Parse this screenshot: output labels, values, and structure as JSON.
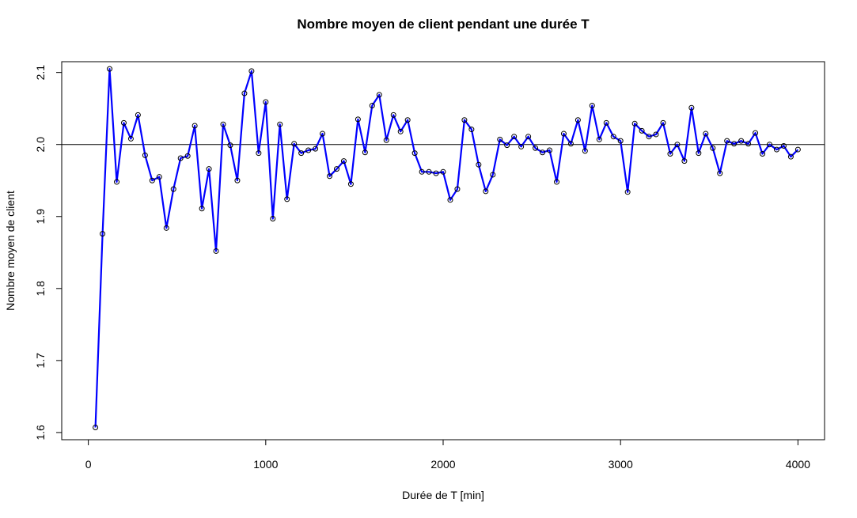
{
  "chart_data": {
    "type": "line",
    "title": "Nombre moyen de client pendant une durée T",
    "xlabel": "Durée de T [min]",
    "ylabel": "Nombre moyen de client",
    "xlim": [
      -150,
      4150
    ],
    "ylim": [
      1.59,
      2.115
    ],
    "xticks": [
      0,
      1000,
      2000,
      3000,
      4000
    ],
    "yticks": [
      1.6,
      1.7,
      1.8,
      1.9,
      2.0,
      2.1
    ],
    "xtick_labels": [
      "0",
      "1000",
      "2000",
      "3000",
      "4000"
    ],
    "ytick_labels": [
      "1.6",
      "1.7",
      "1.8",
      "1.9",
      "2.0",
      "2.1"
    ],
    "reference_line": 2.0,
    "grid": false,
    "colors": {
      "line": "#0000ff",
      "marker": "#000000",
      "reference": "#000000"
    },
    "series": [
      {
        "x": [
          40,
          80,
          120,
          160,
          200,
          240,
          280,
          320,
          360,
          400,
          440,
          480,
          520,
          560,
          600,
          640,
          680,
          720,
          760,
          800,
          840,
          880,
          920,
          960,
          1000,
          1040,
          1080,
          1120,
          1160,
          1200,
          1240,
          1280,
          1320,
          1360,
          1400,
          1440,
          1480,
          1520,
          1560,
          1600,
          1640,
          1680,
          1720,
          1760,
          1800,
          1840,
          1880,
          1920,
          1960,
          2000,
          2040,
          2080,
          2120,
          2160,
          2200,
          2240,
          2280,
          2320,
          2360,
          2400,
          2440,
          2480,
          2520,
          2560,
          2600,
          2640,
          2680,
          2720,
          2760,
          2800,
          2840,
          2880,
          2920,
          2960,
          3000,
          3040,
          3080,
          3120,
          3160,
          3200,
          3240,
          3280,
          3320,
          3360,
          3400,
          3440,
          3480,
          3520,
          3560,
          3600,
          3640,
          3680,
          3720,
          3760,
          3800,
          3840,
          3880,
          3920,
          3960,
          4000
        ],
        "values": [
          1.607,
          1.876,
          2.105,
          1.948,
          2.03,
          2.008,
          2.041,
          1.985,
          1.95,
          1.955,
          1.884,
          1.938,
          1.981,
          1.984,
          2.026,
          1.911,
          1.966,
          1.852,
          2.028,
          1.999,
          1.95,
          2.071,
          2.102,
          1.988,
          2.059,
          1.897,
          2.028,
          1.924,
          2.001,
          1.988,
          1.992,
          1.994,
          2.015,
          1.956,
          1.966,
          1.977,
          1.945,
          2.035,
          1.989,
          2.054,
          2.069,
          2.006,
          2.041,
          2.018,
          2.034,
          1.988,
          1.962,
          1.962,
          1.96,
          1.962,
          1.923,
          1.938,
          2.034,
          2.021,
          1.972,
          1.935,
          1.958,
          2.007,
          1.999,
          2.011,
          1.997,
          2.011,
          1.995,
          1.989,
          1.992,
          1.948,
          2.015,
          2.001,
          2.034,
          1.991,
          2.054,
          2.007,
          2.03,
          2.011,
          2.005,
          1.934,
          2.029,
          2.019,
          2.011,
          2.014,
          2.03,
          1.987,
          2.0,
          1.977,
          2.051,
          1.988,
          2.015,
          1.995,
          1.96,
          2.005,
          2.001,
          2.005,
          2.001,
          2.016,
          1.987,
          2.0,
          1.993,
          1.998,
          1.983,
          1.993
        ]
      }
    ]
  }
}
